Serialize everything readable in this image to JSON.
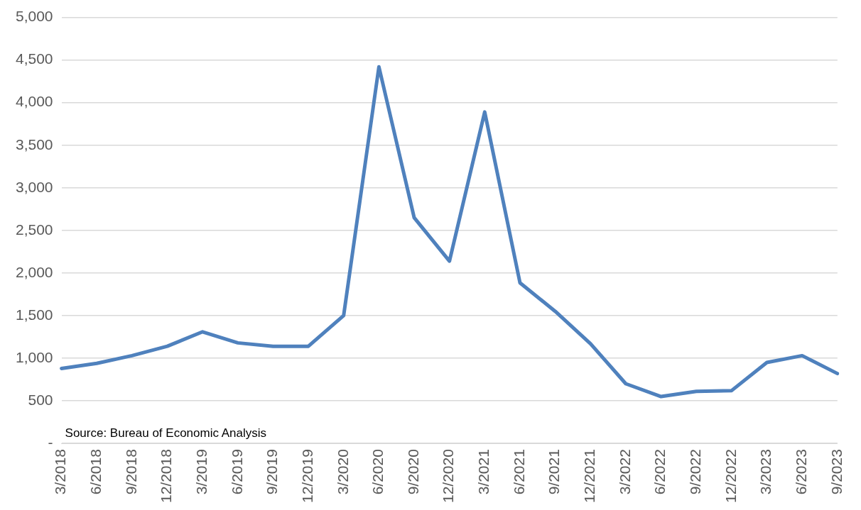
{
  "chart_data": {
    "type": "line",
    "categories": [
      "3/2018",
      "6/2018",
      "9/2018",
      "12/2018",
      "3/2019",
      "6/2019",
      "9/2019",
      "12/2019",
      "3/2020",
      "6/2020",
      "9/2020",
      "12/2020",
      "3/2021",
      "6/2021",
      "9/2021",
      "12/2021",
      "3/2022",
      "6/2022",
      "9/2022",
      "12/2022",
      "3/2023",
      "6/2023",
      "9/2023"
    ],
    "series": [
      {
        "color": "#4f81bd",
        "values": [
          880,
          940,
          1030,
          1140,
          1310,
          1180,
          1140,
          1140,
          1500,
          4420,
          2650,
          2140,
          3890,
          1885,
          1550,
          1170,
          700,
          550,
          610,
          620,
          950,
          1030,
          820
        ]
      }
    ],
    "ylim": [
      0,
      5000
    ],
    "yticks": [
      {
        "value": 0,
        "label": "-"
      },
      500,
      {
        "value": 1000,
        "label": "1,000"
      },
      {
        "value": 1500,
        "label": "1,500"
      },
      {
        "value": 2000,
        "label": "2,000"
      },
      {
        "value": 2500,
        "label": "2,500"
      },
      {
        "value": 3000,
        "label": "3,000"
      },
      {
        "value": 3500,
        "label": "3,500"
      },
      {
        "value": 4000,
        "label": "4,000"
      },
      {
        "value": 4500,
        "label": "4,500"
      },
      {
        "value": 5000,
        "label": "5,000"
      }
    ],
    "grid": "y",
    "legend": false,
    "marker": "none",
    "line_style": "solid",
    "annotations": [
      "Source: Bureau of Economic Analysis"
    ]
  }
}
